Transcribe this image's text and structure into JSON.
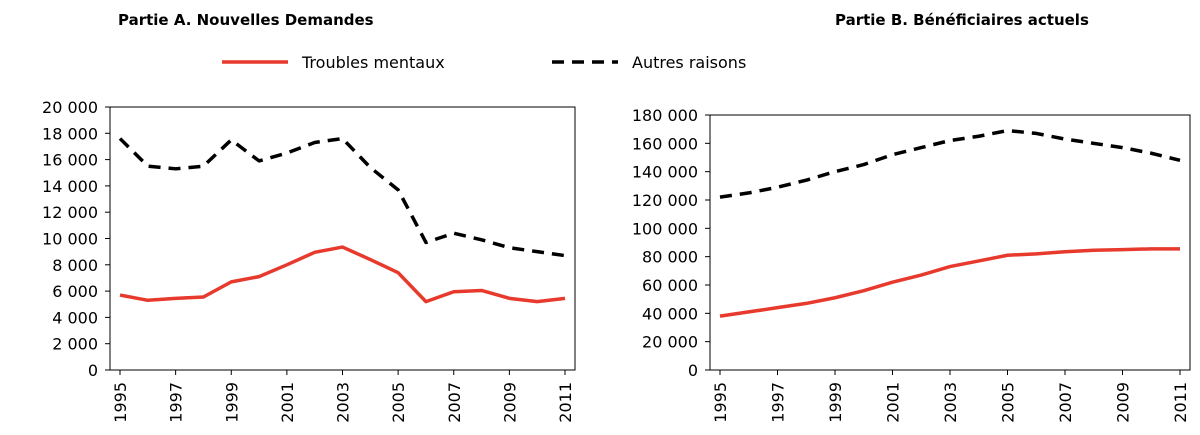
{
  "chart_data": [
    {
      "type": "line",
      "title": "Partie A. Nouvelles Demandes",
      "x": [
        1995,
        1996,
        1997,
        1998,
        1999,
        2000,
        2001,
        2002,
        2003,
        2004,
        2005,
        2006,
        2007,
        2008,
        2009,
        2010,
        2011
      ],
      "xlim": [
        1995,
        2011
      ],
      "xticks": [
        1995,
        1997,
        1999,
        2001,
        2003,
        2005,
        2007,
        2009,
        2011
      ],
      "ylim": [
        0,
        20000
      ],
      "yticks": [
        0,
        {
          "value": 2000,
          "label": "2 000"
        },
        {
          "value": 4000,
          "label": "4 000"
        },
        {
          "value": 6000,
          "label": "6 000"
        },
        {
          "value": 8000,
          "label": "8 000"
        },
        {
          "value": 10000,
          "label": "10 000"
        },
        {
          "value": 12000,
          "label": "12 000"
        },
        {
          "value": 14000,
          "label": "14 000"
        },
        {
          "value": 16000,
          "label": "16 000"
        },
        {
          "value": 18000,
          "label": "18 000"
        },
        {
          "value": 20000,
          "label": "20 000"
        }
      ],
      "series": [
        {
          "name": "Troubles mentaux",
          "color": "#e8392d",
          "dashed": false,
          "values": [
            5700,
            5300,
            5450,
            5550,
            6700,
            7100,
            8000,
            8950,
            9350,
            8400,
            7400,
            5200,
            5950,
            6050,
            5450,
            5200,
            5450
          ]
        },
        {
          "name": "Autres raisons",
          "color": "#000000",
          "dashed": true,
          "values": [
            17600,
            15500,
            15300,
            15500,
            17500,
            15900,
            16500,
            17300,
            17600,
            15400,
            13700,
            9700,
            10400,
            9900,
            9300,
            9000,
            8700
          ]
        }
      ]
    },
    {
      "type": "line",
      "title": "Partie B. Bénéficiaires actuels",
      "x": [
        1995,
        1996,
        1997,
        1998,
        1999,
        2000,
        2001,
        2002,
        2003,
        2004,
        2005,
        2006,
        2007,
        2008,
        2009,
        2010,
        2011
      ],
      "xlim": [
        1995,
        2011
      ],
      "xticks": [
        1995,
        1997,
        1999,
        2001,
        2003,
        2005,
        2007,
        2009,
        2011
      ],
      "ylim": [
        0,
        180000
      ],
      "yticks": [
        0,
        {
          "value": 20000,
          "label": "20 000"
        },
        {
          "value": 40000,
          "label": "40 000"
        },
        {
          "value": 60000,
          "label": "60 000"
        },
        {
          "value": 80000,
          "label": "80 000"
        },
        {
          "value": 100000,
          "label": "100 000"
        },
        {
          "value": 120000,
          "label": "120 000"
        },
        {
          "value": 140000,
          "label": "140 000"
        },
        {
          "value": 160000,
          "label": "160 000"
        },
        {
          "value": 180000,
          "label": "180 000"
        }
      ],
      "series": [
        {
          "color": "#e8392d",
          "dashed": false,
          "values": [
            38000,
            41000,
            44000,
            47000,
            51000,
            56000,
            62000,
            67000,
            73000,
            77000,
            81000,
            82000,
            83500,
            84500,
            85000,
            85500,
            85500
          ]
        },
        {
          "color": "#000000",
          "dashed": true,
          "values": [
            122000,
            125000,
            129000,
            134000,
            140000,
            145000,
            152000,
            157000,
            162000,
            165000,
            169000,
            167000,
            163000,
            160000,
            157000,
            153000,
            148000
          ]
        }
      ]
    }
  ]
}
